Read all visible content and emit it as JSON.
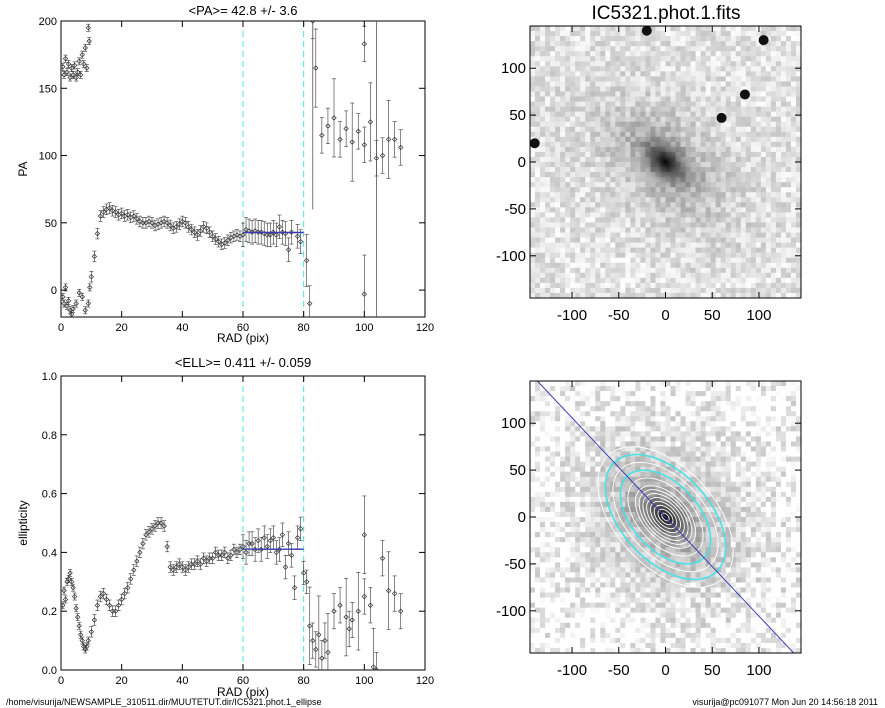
{
  "footer": {
    "left": "/home/visurija/NEWSAMPLE_310511.dir/MUUTETUT.dir/IC5321.phot.1_ellipse",
    "right": "visurija@pc091077  Mon Jun 20 14:56:18 2011"
  },
  "colors": {
    "fit_line": "#3a3ab4",
    "range_lines": "#48e2e6",
    "data_points": "#333333"
  },
  "chart_data": [
    {
      "type": "scatter",
      "title": "<PA>=  42.8 +/-   3.6",
      "xlabel": "RAD (pix)",
      "ylabel": "PA",
      "xlim": [
        0,
        120
      ],
      "ylim": [
        -20,
        200
      ],
      "xticks": [
        "0",
        "20",
        "40",
        "60",
        "80",
        "100",
        "120"
      ],
      "yticks": [
        "0",
        "50",
        "100",
        "150",
        "200"
      ],
      "vlines": [
        60,
        80
      ],
      "fit": {
        "value": 42.8,
        "x_range": [
          60,
          80
        ]
      },
      "points": [
        [
          0.6,
          166
        ],
        [
          1,
          160
        ],
        [
          1.5,
          172
        ],
        [
          2,
          162
        ],
        [
          2.5,
          168
        ],
        [
          3,
          158
        ],
        [
          3.5,
          165
        ],
        [
          4,
          160
        ],
        [
          4.5,
          167
        ],
        [
          5,
          158
        ],
        [
          5.5,
          162
        ],
        [
          6,
          170
        ],
        [
          6.5,
          160
        ],
        [
          7,
          175
        ],
        [
          7.5,
          168
        ],
        [
          8,
          180
        ],
        [
          8.5,
          165
        ],
        [
          9,
          195
        ],
        [
          9.3,
          185
        ],
        [
          0.6,
          -5
        ],
        [
          1,
          -10
        ],
        [
          1.5,
          2
        ],
        [
          2,
          -12
        ],
        [
          2.5,
          -8
        ],
        [
          3,
          -15
        ],
        [
          3.5,
          -18
        ],
        [
          4,
          -14
        ],
        [
          5,
          -10
        ],
        [
          6,
          -2
        ],
        [
          7,
          -5
        ],
        [
          8,
          -15
        ],
        [
          9,
          -10
        ],
        [
          9.5,
          2
        ],
        [
          10,
          10
        ],
        [
          11,
          25
        ],
        [
          12,
          42
        ],
        [
          13,
          55
        ],
        [
          14,
          58
        ],
        [
          15,
          60
        ],
        [
          16,
          61
        ],
        [
          17,
          59
        ],
        [
          18,
          58
        ],
        [
          19,
          56
        ],
        [
          20,
          57
        ],
        [
          21,
          55
        ],
        [
          22,
          56
        ],
        [
          23,
          54
        ],
        [
          24,
          55
        ],
        [
          25,
          53
        ],
        [
          26,
          51
        ],
        [
          27,
          50
        ],
        [
          28,
          50
        ],
        [
          29,
          51
        ],
        [
          30,
          50
        ],
        [
          31,
          48
        ],
        [
          32,
          49
        ],
        [
          33,
          50
        ],
        [
          34,
          51
        ],
        [
          35,
          50
        ],
        [
          36,
          48
        ],
        [
          37,
          46
        ],
        [
          38,
          47
        ],
        [
          39,
          49
        ],
        [
          40,
          51
        ],
        [
          41,
          50
        ],
        [
          42,
          47
        ],
        [
          43,
          45
        ],
        [
          44,
          43
        ],
        [
          45,
          41
        ],
        [
          46,
          44
        ],
        [
          47,
          47
        ],
        [
          48,
          46
        ],
        [
          49,
          43
        ],
        [
          50,
          40
        ],
        [
          51,
          38
        ],
        [
          52,
          36
        ],
        [
          53,
          34
        ],
        [
          54,
          35
        ],
        [
          55,
          37
        ],
        [
          56,
          39
        ],
        [
          57,
          40
        ],
        [
          58,
          41
        ],
        [
          59,
          40
        ],
        [
          60,
          41
        ],
        [
          61,
          45
        ],
        [
          62,
          44
        ],
        [
          63,
          43
        ],
        [
          64,
          44
        ],
        [
          65,
          43
        ],
        [
          66,
          43
        ],
        [
          67,
          42
        ],
        [
          68,
          41
        ],
        [
          69,
          41
        ],
        [
          70,
          43
        ],
        [
          71,
          41
        ],
        [
          72,
          47
        ],
        [
          73,
          43
        ],
        [
          74,
          42
        ],
        [
          75,
          30
        ],
        [
          76,
          43
        ],
        [
          78,
          40
        ],
        [
          79,
          36
        ],
        [
          81,
          22
        ],
        [
          82,
          -10
        ],
        [
          83,
          200
        ],
        [
          84,
          165
        ],
        [
          86,
          115
        ],
        [
          88,
          122
        ],
        [
          90,
          128
        ],
        [
          92,
          112
        ],
        [
          94,
          120
        ],
        [
          96,
          110
        ],
        [
          98,
          118
        ],
        [
          100,
          108
        ],
        [
          102,
          125
        ],
        [
          104,
          98
        ],
        [
          106,
          100
        ],
        [
          108,
          112
        ],
        [
          110,
          112
        ],
        [
          112,
          106
        ],
        [
          100,
          -3
        ],
        [
          100,
          183
        ]
      ]
    },
    {
      "type": "scatter",
      "title": "<ELL>= 0.411 +/-  0.059",
      "xlabel": "RAD (pix)",
      "ylabel": "ellipticity",
      "xlim": [
        0,
        120
      ],
      "ylim": [
        0.0,
        1.0
      ],
      "xticks": [
        "0",
        "20",
        "40",
        "60",
        "80",
        "100",
        "120"
      ],
      "yticks": [
        "0.0",
        "0.2",
        "0.4",
        "0.6",
        "0.8",
        "1.0"
      ],
      "vlines": [
        60,
        80
      ],
      "fit": {
        "value": 0.411,
        "x_range": [
          60,
          80
        ]
      },
      "points": [
        [
          0.6,
          0.22
        ],
        [
          1,
          0.27
        ],
        [
          1.5,
          0.24
        ],
        [
          2,
          0.3
        ],
        [
          2.5,
          0.31
        ],
        [
          3,
          0.33
        ],
        [
          3.5,
          0.3
        ],
        [
          4,
          0.28
        ],
        [
          4.5,
          0.25
        ],
        [
          5,
          0.21
        ],
        [
          5.5,
          0.18
        ],
        [
          6,
          0.15
        ],
        [
          6.5,
          0.12
        ],
        [
          7,
          0.1
        ],
        [
          7.5,
          0.08
        ],
        [
          8,
          0.07
        ],
        [
          8.5,
          0.08
        ],
        [
          9,
          0.1
        ],
        [
          10,
          0.13
        ],
        [
          11,
          0.17
        ],
        [
          12,
          0.22
        ],
        [
          13,
          0.25
        ],
        [
          14,
          0.26
        ],
        [
          15,
          0.24
        ],
        [
          16,
          0.22
        ],
        [
          17,
          0.2
        ],
        [
          18,
          0.2
        ],
        [
          19,
          0.22
        ],
        [
          20,
          0.24
        ],
        [
          21,
          0.26
        ],
        [
          22,
          0.28
        ],
        [
          23,
          0.31
        ],
        [
          24,
          0.34
        ],
        [
          25,
          0.37
        ],
        [
          26,
          0.4
        ],
        [
          27,
          0.43
        ],
        [
          28,
          0.46
        ],
        [
          29,
          0.47
        ],
        [
          30,
          0.48
        ],
        [
          31,
          0.49
        ],
        [
          32,
          0.5
        ],
        [
          33,
          0.5
        ],
        [
          34,
          0.49
        ],
        [
          35,
          0.42
        ],
        [
          36,
          0.35
        ],
        [
          37,
          0.34
        ],
        [
          38,
          0.35
        ],
        [
          39,
          0.36
        ],
        [
          40,
          0.35
        ],
        [
          41,
          0.34
        ],
        [
          42,
          0.35
        ],
        [
          43,
          0.36
        ],
        [
          44,
          0.36
        ],
        [
          45,
          0.37
        ],
        [
          46,
          0.36
        ],
        [
          47,
          0.38
        ],
        [
          48,
          0.37
        ],
        [
          49,
          0.38
        ],
        [
          50,
          0.38
        ],
        [
          51,
          0.4
        ],
        [
          52,
          0.39
        ],
        [
          53,
          0.39
        ],
        [
          54,
          0.4
        ],
        [
          55,
          0.38
        ],
        [
          56,
          0.39
        ],
        [
          57,
          0.41
        ],
        [
          58,
          0.4
        ],
        [
          59,
          0.41
        ],
        [
          60,
          0.42
        ],
        [
          61,
          0.4
        ],
        [
          62,
          0.43
        ],
        [
          63,
          0.43
        ],
        [
          64,
          0.41
        ],
        [
          65,
          0.44
        ],
        [
          66,
          0.41
        ],
        [
          67,
          0.45
        ],
        [
          68,
          0.42
        ],
        [
          69,
          0.44
        ],
        [
          70,
          0.45
        ],
        [
          71,
          0.4
        ],
        [
          72,
          0.41
        ],
        [
          73,
          0.46
        ],
        [
          74,
          0.35
        ],
        [
          75,
          0.43
        ],
        [
          76,
          0.39
        ],
        [
          77,
          0.28
        ],
        [
          78,
          0.45
        ],
        [
          79,
          0.48
        ],
        [
          80,
          0.33
        ],
        [
          81,
          0.3
        ],
        [
          82,
          0.15
        ],
        [
          83,
          0.1
        ],
        [
          84,
          0.07
        ],
        [
          85,
          0.12
        ],
        [
          86,
          0.04
        ],
        [
          87,
          0.1
        ],
        [
          88,
          0.06
        ],
        [
          90,
          0.2
        ],
        [
          92,
          0.22
        ],
        [
          94,
          0.18
        ],
        [
          95,
          0.14
        ],
        [
          96,
          0.17
        ],
        [
          98,
          0.2
        ],
        [
          100,
          0.25
        ],
        [
          102,
          0.22
        ],
        [
          103,
          0.01
        ],
        [
          104,
          0.0
        ],
        [
          106,
          0.38
        ],
        [
          108,
          0.27
        ],
        [
          110,
          0.26
        ],
        [
          112,
          0.2
        ],
        [
          100,
          0.46
        ]
      ]
    },
    {
      "type": "heatmap",
      "title": "IC5321.phot.1.fits",
      "xlim": [
        -145,
        145
      ],
      "ylim": [
        -145,
        145
      ],
      "xticks": [
        "-100",
        "-50",
        "0",
        "50",
        "100"
      ],
      "yticks": [
        "100",
        "50",
        "0",
        "-50",
        "-100"
      ],
      "colormap": "grayscale, dark = bright",
      "center": [
        0,
        0
      ],
      "bright_sources": [
        [
          60,
          47
        ],
        [
          -140,
          20
        ],
        [
          85,
          72
        ],
        [
          105,
          130
        ],
        [
          -20,
          140
        ]
      ]
    },
    {
      "type": "heatmap",
      "title": "",
      "xlim": [
        -145,
        145
      ],
      "ylim": [
        -145,
        145
      ],
      "xticks": [
        "-100",
        "-50",
        "0",
        "50",
        "100"
      ],
      "yticks": [
        "100",
        "50",
        "0",
        "-50",
        "-100"
      ],
      "colormap": "grayscale with isophote ellipses",
      "pa_line": {
        "from": [
          -140,
          148
        ],
        "to": [
          140,
          -148
        ]
      },
      "ellipses": {
        "pa_deg": 42.8,
        "ellipticity": 0.411,
        "sma": [
          5,
          10,
          15,
          20,
          25,
          30,
          35,
          40,
          50,
          60,
          70,
          80,
          90
        ]
      }
    }
  ]
}
